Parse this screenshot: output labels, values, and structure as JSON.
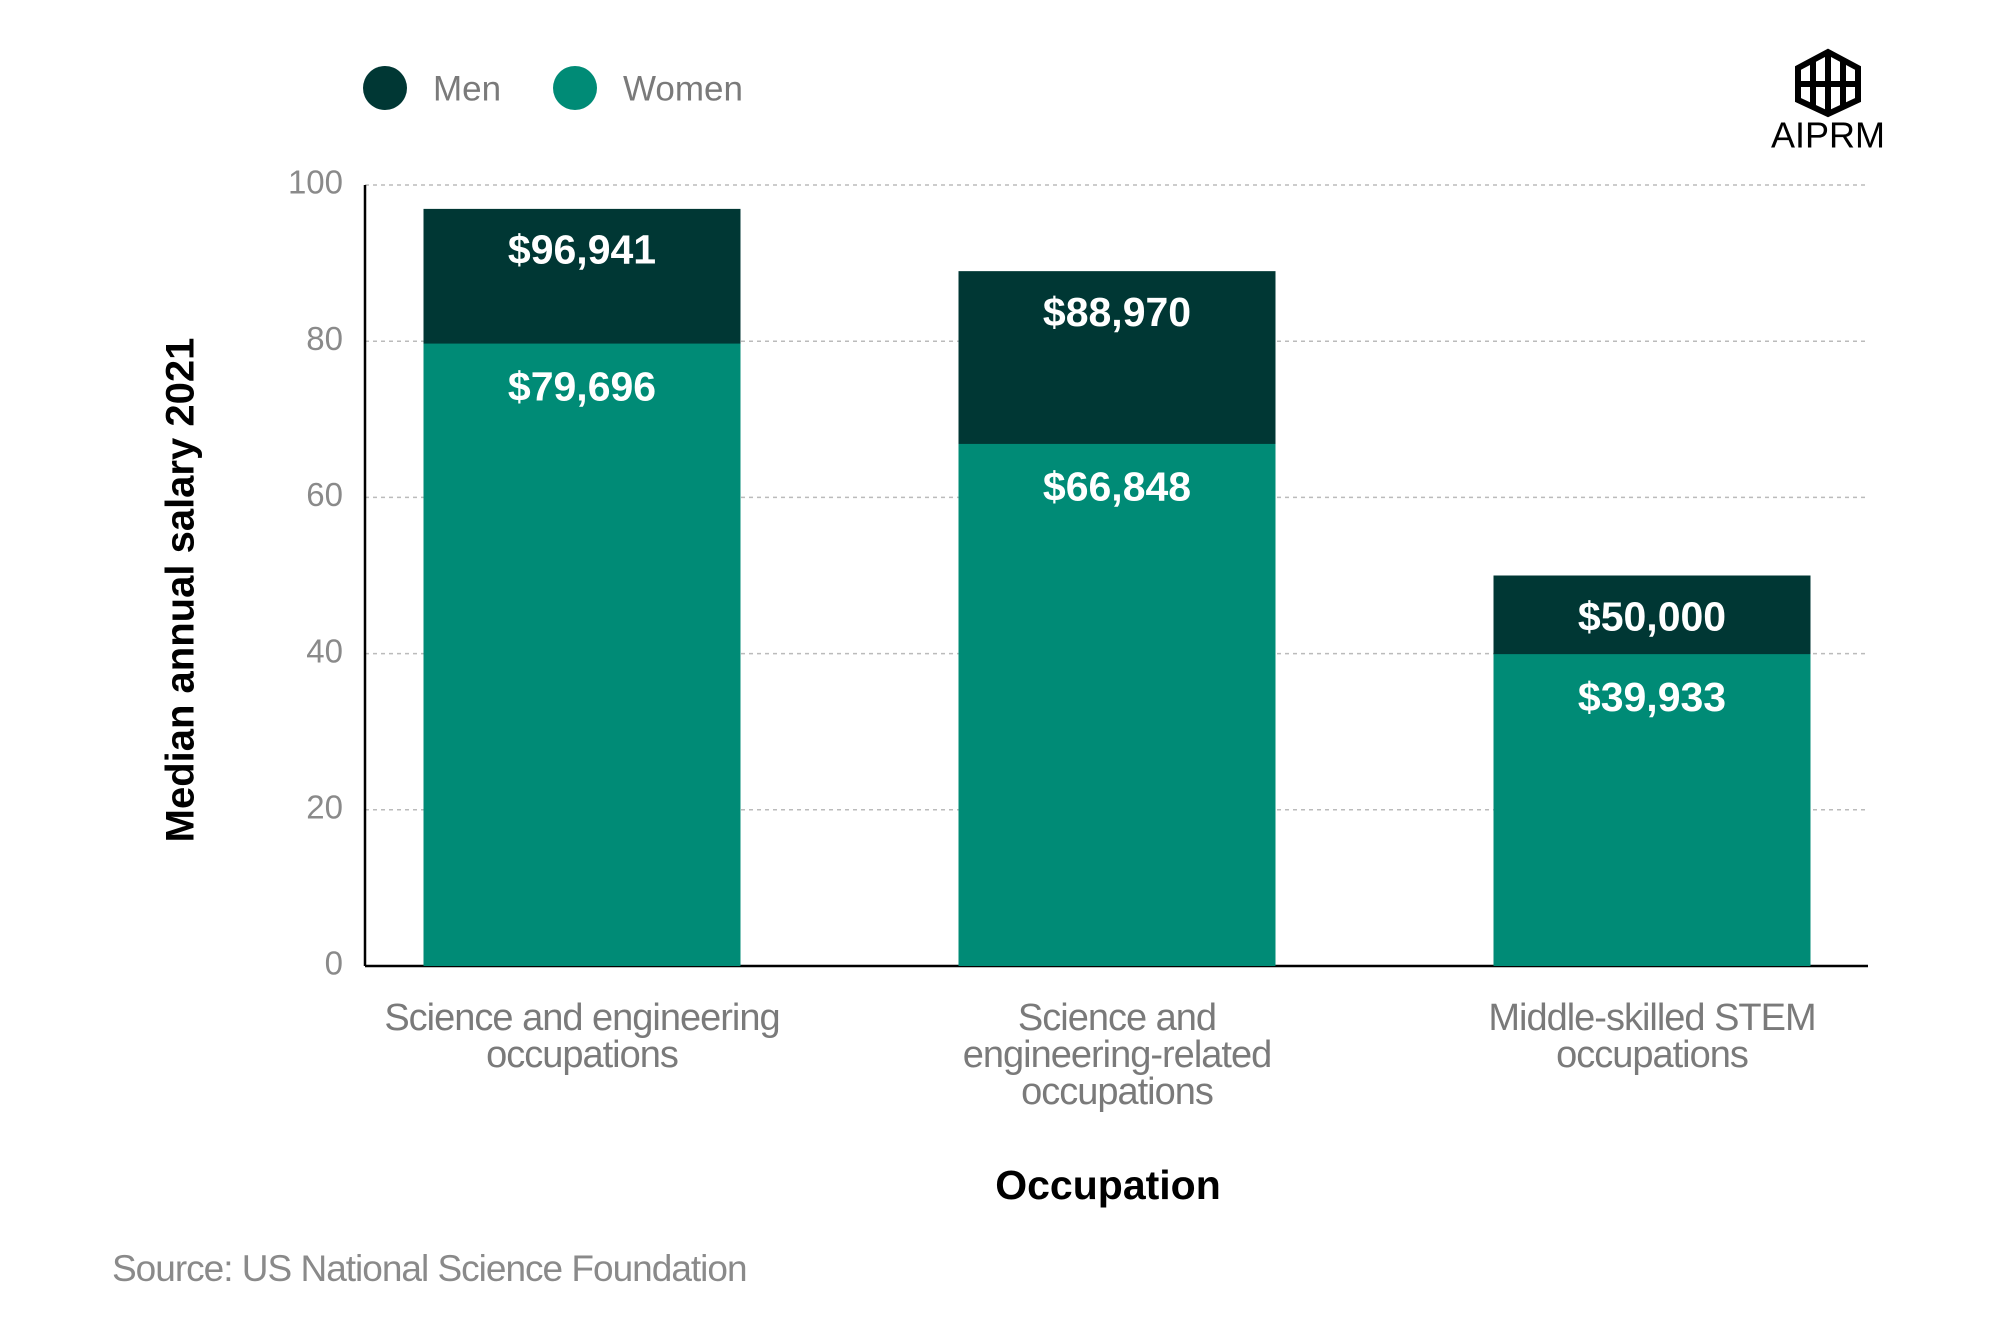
{
  "chart_data": {
    "type": "bar",
    "mode": "overlap",
    "y_label": "Median annual salary 2021",
    "x_label": "Occupation",
    "source": "Source: US National Science Foundation",
    "logo": "AIPRM",
    "categories": [
      "Science and engineering occupations",
      "Science and engineering-related occupations",
      "Middle-skilled STEM occupations"
    ],
    "series": [
      {
        "name": "Men",
        "color": "#003734",
        "values": [
          96.941,
          88.97,
          50.0
        ],
        "value_labels": [
          "$96,941",
          "$88,970",
          "$50,000"
        ]
      },
      {
        "name": "Women",
        "color": "#008b76",
        "values": [
          79.696,
          66.848,
          39.933
        ],
        "value_labels": [
          "$79,696",
          "$66,848",
          "$39,933"
        ]
      }
    ],
    "ylim": [
      0,
      100
    ],
    "yticks": [
      0,
      20,
      40,
      60,
      80,
      100
    ],
    "grid": true
  }
}
